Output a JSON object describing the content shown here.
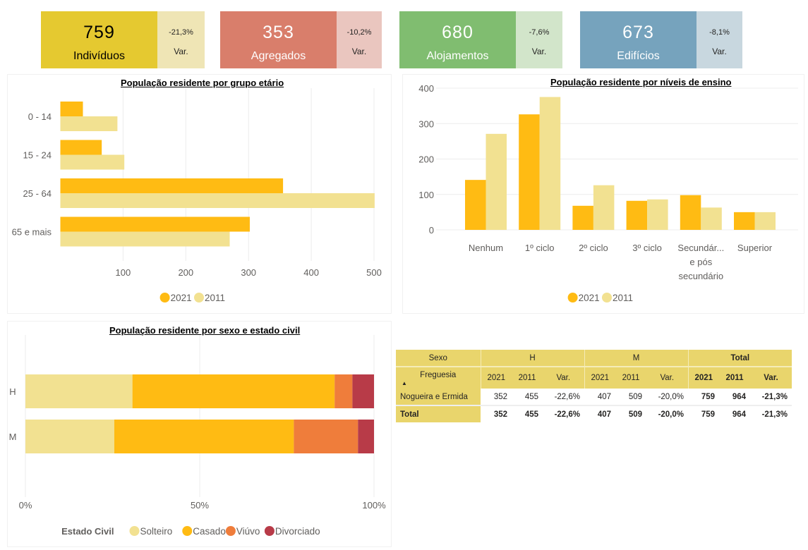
{
  "kpis": [
    {
      "value": "759",
      "label": "Indivíduos",
      "var": "-21,3%",
      "var_label": "Var.",
      "color": "#e5c930",
      "var_color": "#efe5b5",
      "text_color": "#000000"
    },
    {
      "value": "353",
      "label": "Agregados",
      "var": "-10,2%",
      "var_label": "Var.",
      "color": "#d97e6b",
      "var_color": "#eac6bf",
      "text_color": "#ffffff"
    },
    {
      "value": "680",
      "label": "Alojamentos",
      "var": "-7,6%",
      "var_label": "Var.",
      "color": "#80bd70",
      "var_color": "#d2e5ca",
      "text_color": "#ffffff"
    },
    {
      "value": "673",
      "label": "Edifícios",
      "var": "-8,1%",
      "var_label": "Var.",
      "color": "#76a3bd",
      "var_color": "#c8d7df",
      "text_color": "#ffffff"
    }
  ],
  "chart_data": [
    {
      "id": "age",
      "type": "bar",
      "orientation": "horizontal",
      "title": "População residente por grupo etário",
      "categories": [
        "0 - 14",
        "15 - 24",
        "25 - 64",
        "65 e mais"
      ],
      "series": [
        {
          "name": "2021",
          "color": "#ffbb13",
          "values": [
            36,
            66,
            355,
            302
          ]
        },
        {
          "name": "2011",
          "color": "#f2e191",
          "values": [
            91,
            102,
            501,
            270
          ]
        }
      ],
      "xlim": [
        0,
        500
      ],
      "xticks": [
        100,
        200,
        300,
        400,
        500
      ],
      "xlabel": "",
      "ylabel": "",
      "grid": true,
      "legend": "bottom-center"
    },
    {
      "id": "education",
      "type": "bar",
      "orientation": "vertical",
      "title": "População residente por níveis de ensino",
      "categories": [
        "Nenhum",
        "1º ciclo",
        "2º ciclo",
        "3º ciclo",
        "Secundár... e pós secundário",
        "Superior"
      ],
      "category_lines": [
        [
          "Nenhum"
        ],
        [
          "1º ciclo"
        ],
        [
          "2º ciclo"
        ],
        [
          "3º ciclo"
        ],
        [
          "Secundár...",
          "e pós",
          "secundário"
        ],
        [
          "Superior"
        ]
      ],
      "series": [
        {
          "name": "2021",
          "color": "#ffbb13",
          "values": [
            141,
            326,
            68,
            82,
            98,
            50
          ]
        },
        {
          "name": "2011",
          "color": "#f2e191",
          "values": [
            271,
            375,
            126,
            86,
            63,
            50
          ]
        }
      ],
      "ylim": [
        0,
        400
      ],
      "yticks": [
        0,
        100,
        200,
        300,
        400
      ],
      "xlabel": "",
      "ylabel": "",
      "grid": true,
      "legend": "bottom-center"
    },
    {
      "id": "civil",
      "type": "bar",
      "orientation": "horizontal",
      "stacked": "100%",
      "title": "População residente por sexo e estado civil",
      "categories": [
        "H",
        "M"
      ],
      "legend_title": "Estado Civil",
      "series": [
        {
          "name": "Solteiro",
          "color": "#f2e191",
          "values": [
            30.7,
            25.5
          ]
        },
        {
          "name": "Casado",
          "color": "#ffbb13",
          "values": [
            58.0,
            51.5
          ]
        },
        {
          "name": "Viúvo",
          "color": "#ef7d3b",
          "values": [
            5.1,
            18.4
          ]
        },
        {
          "name": "Divorciado",
          "color": "#b83b48",
          "values": [
            6.2,
            4.6
          ]
        }
      ],
      "xlim": [
        0,
        100
      ],
      "xticks": [
        "0%",
        "50%",
        "100%"
      ],
      "grid": true,
      "legend": "bottom-center"
    }
  ],
  "matrix": {
    "row_header_label": "Sexo",
    "row_field_label": "Freguesia",
    "sort_icon": "triangle-up",
    "groups": [
      "H",
      "M",
      "Total"
    ],
    "subcols": [
      "2021",
      "2011",
      "Var."
    ],
    "rows": [
      {
        "label": "Nogueira e Ermida",
        "values": [
          "352",
          "455",
          "-22,6%",
          "407",
          "509",
          "-20,0%",
          "759",
          "964",
          "-21,3%"
        ]
      }
    ],
    "total": {
      "label": "Total",
      "values": [
        "352",
        "455",
        "-22,6%",
        "407",
        "509",
        "-20,0%",
        "759",
        "964",
        "-21,3%"
      ]
    }
  }
}
